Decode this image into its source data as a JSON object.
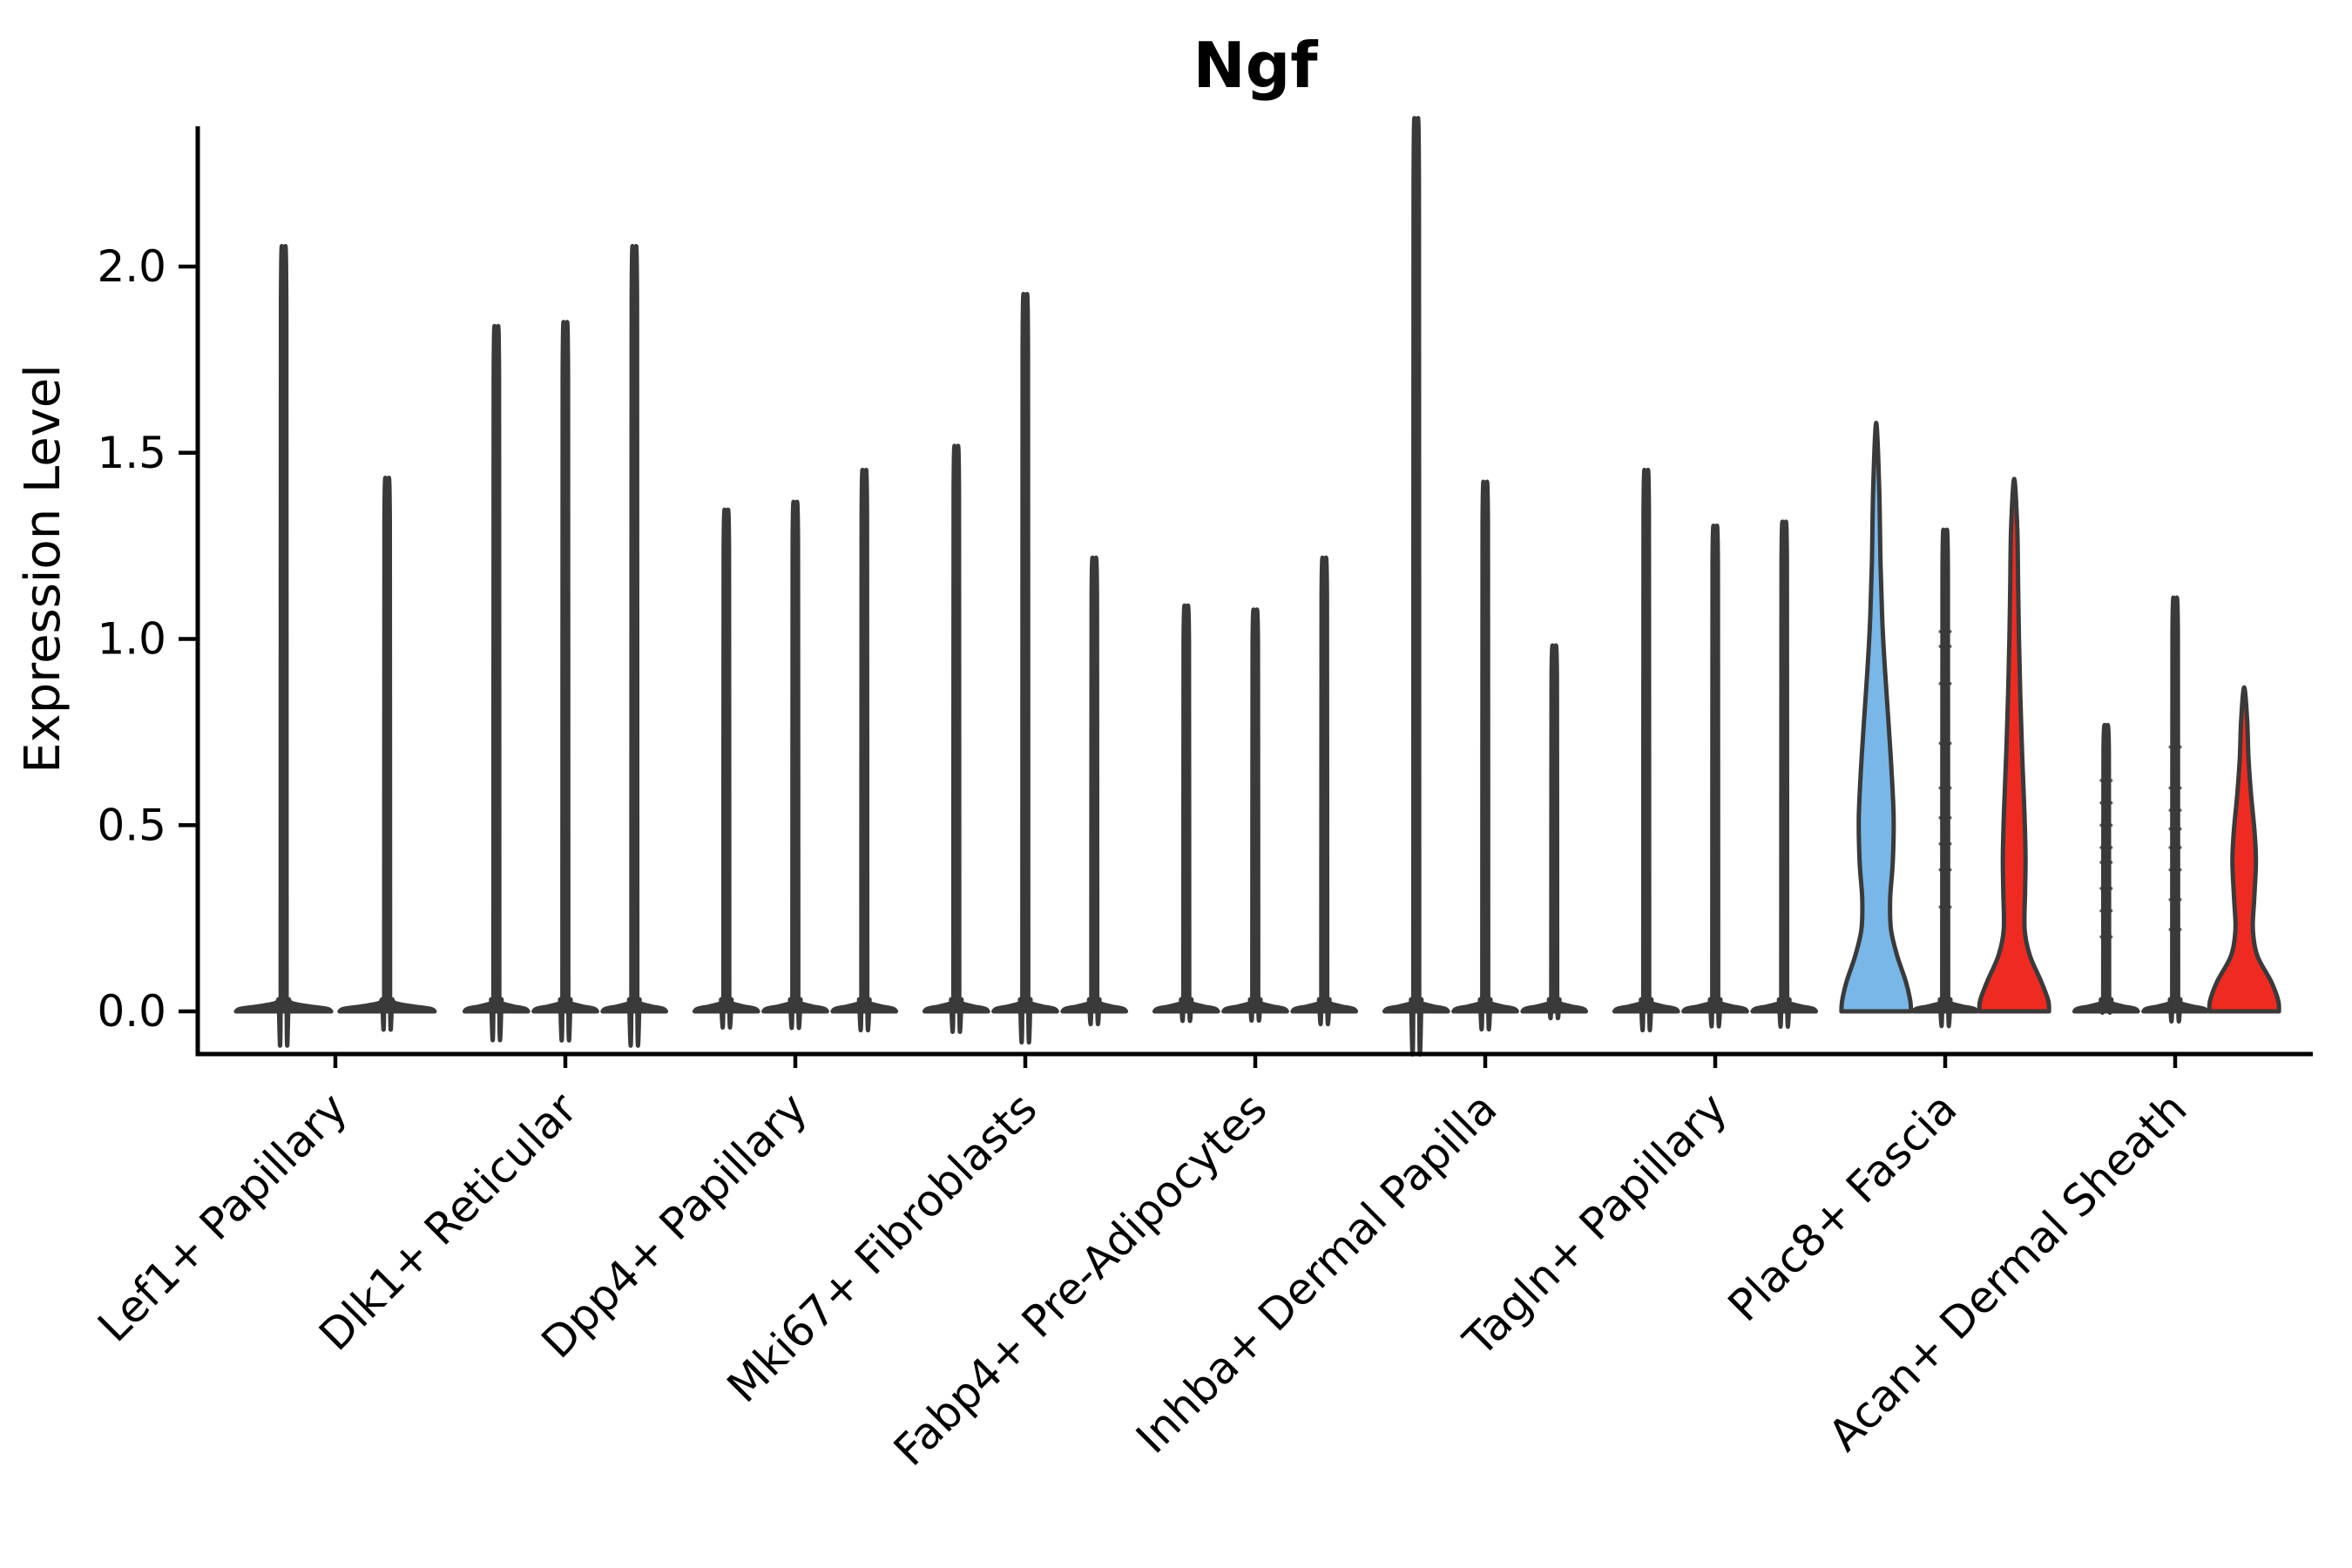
{
  "title": "Ngf",
  "axes": {
    "ylabel": "Expression Level",
    "ytick_labels": [
      "0.0",
      "0.5",
      "1.0",
      "1.5",
      "2.0"
    ]
  },
  "colors": {
    "blue_fill": "#78B7E8",
    "red_fill": "#EF2B21",
    "violin_outline": "#3A3A3A",
    "axis_color": "#000000",
    "text_color": "#000000",
    "background": "#FFFFFF"
  },
  "chart_data": {
    "type": "violin",
    "title": "Ngf",
    "xlabel": "",
    "ylabel": "Expression Level",
    "ylim": [
      -0.12,
      2.38
    ],
    "yticks": [
      0.0,
      0.5,
      1.0,
      1.5,
      2.0
    ],
    "grid": false,
    "legend_position": "none",
    "categories": [
      "Lef1+ Papillary",
      "Dlk1+ Reticular",
      "Dpp4+ Papillary",
      "Mki67+ Fibroblasts",
      "Fabp4+ Pre-Adipocytes",
      "Inhba+ Dermal Papilla",
      "Tagln+ Papillary",
      "Plac8+ Fascia",
      "Acan+ Dermal Sheath"
    ],
    "groups": [
      {
        "category": "Lef1+ Papillary",
        "violins": [
          {
            "max": 1.95,
            "fill": "none"
          },
          {
            "max": 1.37,
            "fill": "none"
          }
        ]
      },
      {
        "category": "Dlk1+ Reticular",
        "violins": [
          {
            "max": 1.75,
            "fill": "none"
          },
          {
            "max": 1.76,
            "fill": "none"
          },
          {
            "max": 1.95,
            "fill": "none"
          }
        ]
      },
      {
        "category": "Dpp4+ Papillary",
        "violins": [
          {
            "max": 1.29,
            "fill": "none"
          },
          {
            "max": 1.31,
            "fill": "none"
          },
          {
            "max": 1.39,
            "fill": "none"
          }
        ]
      },
      {
        "category": "Mki67+ Fibroblasts",
        "violins": [
          {
            "max": 1.45,
            "fill": "none"
          },
          {
            "max": 1.83,
            "fill": "none"
          },
          {
            "max": 1.17,
            "fill": "none"
          }
        ]
      },
      {
        "category": "Fabp4+ Pre-Adipocytes",
        "violins": [
          {
            "max": 1.05,
            "fill": "none"
          },
          {
            "max": 1.04,
            "fill": "none"
          },
          {
            "max": 1.17,
            "fill": "none"
          }
        ]
      },
      {
        "category": "Inhba+ Dermal Papilla",
        "violins": [
          {
            "max": 2.27,
            "fill": "none"
          },
          {
            "max": 1.36,
            "fill": "none"
          },
          {
            "max": 0.95,
            "fill": "none"
          }
        ]
      },
      {
        "category": "Tagln+ Papillary",
        "violins": [
          {
            "max": 1.39,
            "fill": "none"
          },
          {
            "max": 1.25,
            "fill": "none"
          },
          {
            "max": 1.26,
            "fill": "none"
          }
        ]
      },
      {
        "category": "Plac8+ Fascia",
        "violins": [
          {
            "max": 1.58,
            "fill": "blue",
            "profile": [
              [
                0,
                40
              ],
              [
                0.03,
                39
              ],
              [
                0.08,
                34
              ],
              [
                0.15,
                24
              ],
              [
                0.22,
                17
              ],
              [
                0.3,
                16
              ],
              [
                0.4,
                19
              ],
              [
                0.52,
                20
              ],
              [
                0.65,
                17.5
              ],
              [
                0.78,
                14
              ],
              [
                0.92,
                10
              ],
              [
                1.05,
                7
              ],
              [
                1.2,
                5
              ],
              [
                1.4,
                3.5
              ],
              [
                1.58,
                0
              ]
            ]
          },
          {
            "max": 1.24,
            "fill": "none",
            "points": [
              1.02,
              0.98,
              0.88,
              0.72,
              0.6,
              0.52,
              0.45,
              0.38,
              0.28
            ]
          },
          {
            "max": 1.43,
            "fill": "red",
            "profile": [
              [
                0,
                40
              ],
              [
                0.03,
                39
              ],
              [
                0.08,
                31
              ],
              [
                0.15,
                18
              ],
              [
                0.22,
                12
              ],
              [
                0.32,
                12.5
              ],
              [
                0.42,
                13
              ],
              [
                0.55,
                11.5
              ],
              [
                0.7,
                9
              ],
              [
                0.85,
                7
              ],
              [
                1.0,
                5.5
              ],
              [
                1.15,
                4.5
              ],
              [
                1.3,
                3.5
              ],
              [
                1.43,
                0
              ]
            ]
          }
        ]
      },
      {
        "category": "Acan+ Dermal Sheath",
        "violins": [
          {
            "max": 0.75,
            "fill": "none",
            "points": [
              0.62,
              0.56,
              0.5,
              0.44,
              0.4,
              0.33,
              0.27,
              0.2
            ]
          },
          {
            "max": 1.07,
            "fill": "none",
            "points": [
              0.71,
              0.6,
              0.54,
              0.49,
              0.44,
              0.38,
              0.3,
              0.22
            ]
          },
          {
            "max": 0.87,
            "fill": "red",
            "profile": [
              [
                0,
                40
              ],
              [
                0.03,
                39
              ],
              [
                0.08,
                31
              ],
              [
                0.15,
                15
              ],
              [
                0.22,
                10
              ],
              [
                0.3,
                11.5
              ],
              [
                0.4,
                13.5
              ],
              [
                0.48,
                12
              ],
              [
                0.58,
                8
              ],
              [
                0.68,
                5
              ],
              [
                0.78,
                3.5
              ],
              [
                0.87,
                0
              ]
            ]
          }
        ]
      }
    ]
  }
}
